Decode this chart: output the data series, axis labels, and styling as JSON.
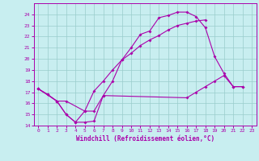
{
  "xlabel": "Windchill (Refroidissement éolien,°C)",
  "xlim": [
    -0.5,
    23.5
  ],
  "ylim": [
    14,
    25
  ],
  "xticks": [
    0,
    1,
    2,
    3,
    4,
    5,
    6,
    7,
    8,
    9,
    10,
    11,
    12,
    13,
    14,
    15,
    16,
    17,
    18,
    19,
    20,
    21,
    22,
    23
  ],
  "yticks": [
    14,
    15,
    16,
    17,
    18,
    19,
    20,
    21,
    22,
    23,
    24
  ],
  "bg_color": "#c8eef0",
  "line_color": "#aa00aa",
  "grid_color": "#99cccc",
  "line1_x": [
    0,
    1,
    2,
    3,
    4,
    5,
    6,
    7,
    8,
    9,
    10,
    11,
    12,
    13,
    14,
    15,
    16,
    17,
    18,
    19,
    20,
    21,
    22
  ],
  "line1_y": [
    17.3,
    16.8,
    16.2,
    15.0,
    14.3,
    14.3,
    14.4,
    16.7,
    18.0,
    19.9,
    21.0,
    22.2,
    22.5,
    23.7,
    23.9,
    24.2,
    24.2,
    23.8,
    22.8,
    20.2,
    18.7,
    17.5,
    17.5
  ],
  "line2_x": [
    0,
    1,
    2,
    3,
    4,
    5,
    6,
    7,
    8,
    9,
    10,
    11,
    12,
    13,
    14,
    15,
    16,
    17,
    18
  ],
  "line2_y": [
    17.3,
    16.8,
    16.2,
    15.0,
    14.3,
    15.3,
    17.1,
    18.0,
    19.0,
    19.9,
    20.5,
    21.2,
    21.7,
    22.1,
    22.6,
    23.0,
    23.2,
    23.4,
    23.5
  ],
  "line3_x": [
    0,
    2,
    3,
    5,
    6,
    7,
    16,
    17,
    18,
    19,
    20,
    21,
    22
  ],
  "line3_y": [
    17.3,
    16.2,
    16.2,
    15.3,
    15.3,
    16.7,
    16.5,
    17.0,
    17.5,
    18.0,
    18.5,
    17.5,
    17.5
  ]
}
